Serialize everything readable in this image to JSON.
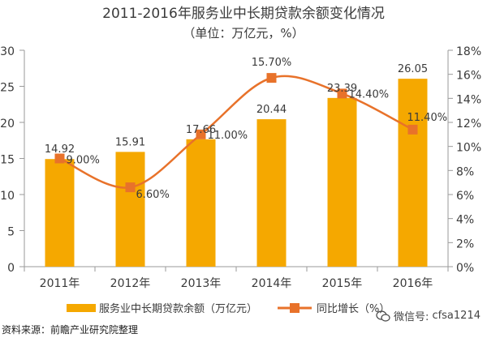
{
  "chart_data": {
    "type": "bar+line",
    "title": "2011-2016年服务业中长期贷款余额变化情况",
    "subtitle": "（单位：万亿元，%）",
    "categories": [
      "2011年",
      "2012年",
      "2013年",
      "2014年",
      "2015年",
      "2016年"
    ],
    "series": [
      {
        "name": "服务业中长期贷款余额（万亿元）",
        "type": "bar",
        "axis": "left",
        "values": [
          14.92,
          15.91,
          17.66,
          20.44,
          23.39,
          26.05
        ],
        "labels": [
          "14.92",
          "15.91",
          "17.66",
          "20.44",
          "23.39",
          "26.05"
        ],
        "color": "#F5A800"
      },
      {
        "name": "同比增长（%）",
        "type": "line",
        "axis": "right",
        "values": [
          9.0,
          6.6,
          11.0,
          15.7,
          14.4,
          11.4
        ],
        "labels": [
          "9.00%",
          "6.60%",
          "11.00%",
          "15.70%",
          "14.40%",
          "11.40%"
        ],
        "color": "#E8722A"
      }
    ],
    "y_left": {
      "range": [
        0,
        30
      ],
      "ticks": [
        "0",
        "5",
        "10",
        "15",
        "20",
        "25",
        "30"
      ]
    },
    "y_right": {
      "range": [
        0,
        18
      ],
      "ticks": [
        "0%",
        "2%",
        "4%",
        "6%",
        "8%",
        "10%",
        "12%",
        "14%",
        "16%",
        "18%"
      ]
    },
    "legend_position": "bottom",
    "source": "资料来源：前瞻产业研究院整理"
  },
  "watermark": {
    "prefix": "微信号:",
    "account": "cfsa1214"
  }
}
